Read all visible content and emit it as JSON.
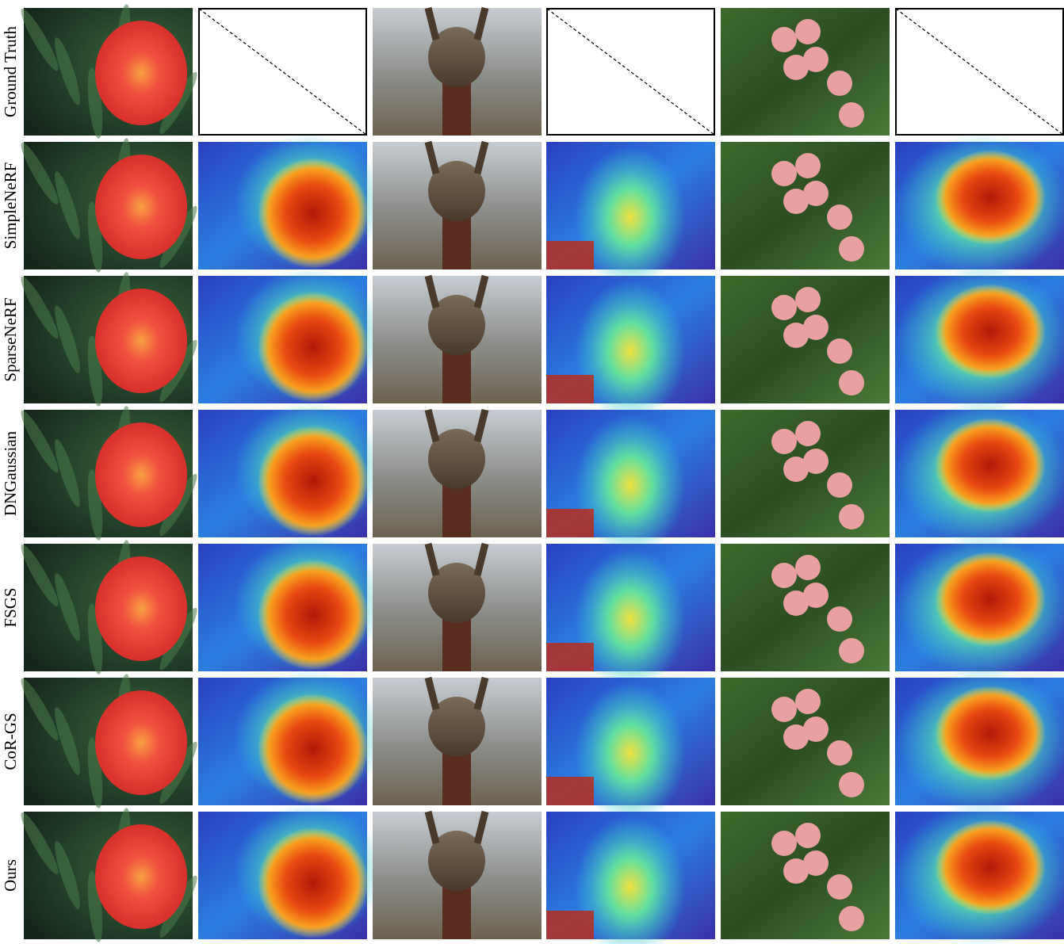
{
  "rows": [
    {
      "label": "Ground Truth"
    },
    {
      "label": "SimpleNeRF"
    },
    {
      "label": "SparseNeRF"
    },
    {
      "label": "DNGaussian"
    },
    {
      "label": "FSGS"
    },
    {
      "label": "CoR-GS"
    },
    {
      "label": "Ours"
    }
  ]
}
